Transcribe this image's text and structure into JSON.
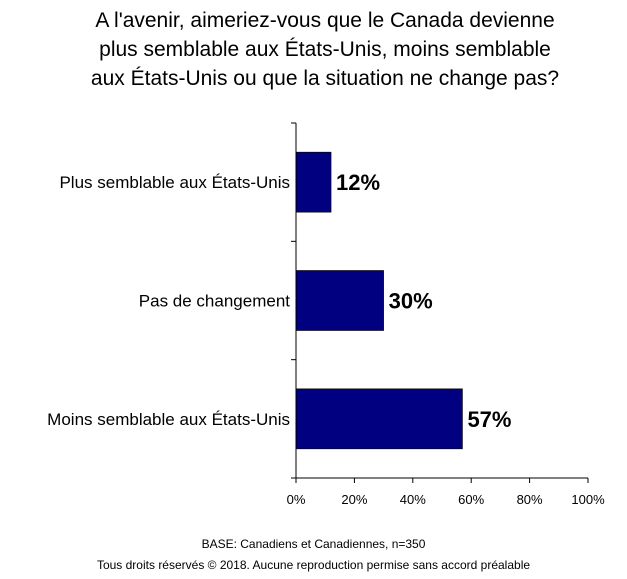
{
  "chart_data": {
    "type": "bar",
    "orientation": "horizontal",
    "title_lines": [
      "A l'avenir, aimeriez-vous que le Canada devienne",
      "plus semblable aux États-Unis, moins semblable",
      "aux États-Unis ou que la situation ne change pas?"
    ],
    "categories": [
      "Plus semblable aux États-Unis",
      "Pas de changement",
      "Moins semblable aux États-Unis"
    ],
    "values": [
      12,
      30,
      57
    ],
    "value_labels": [
      "12%",
      "30%",
      "57%"
    ],
    "xlim": [
      0,
      100
    ],
    "x_ticks": [
      "0%",
      "20%",
      "40%",
      "60%",
      "80%",
      "100%"
    ],
    "bar_color": "#000080",
    "grid": false,
    "legend": "none"
  },
  "footer": {
    "base": "BASE: Canadiens et Canadiennes, n=350",
    "copyright": "Tous droits réservés © 2018. Aucune reproduction permise sans accord préalable"
  }
}
